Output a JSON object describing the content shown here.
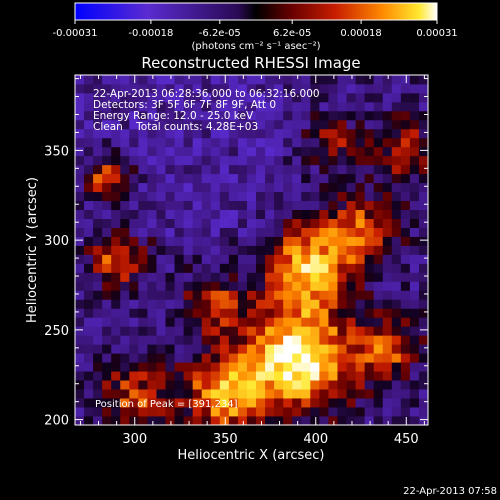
{
  "chart_data": {
    "type": "heatmap",
    "title": "Reconstructed RHESSI Image",
    "xlabel": "Heliocentric X (arcsec)",
    "ylabel": "Heliocentric Y (arcsec)",
    "xlim": [
      267,
      462
    ],
    "ylim": [
      197,
      392
    ],
    "x_ticks": [
      300,
      350,
      400,
      450
    ],
    "y_ticks": [
      200,
      250,
      300,
      350
    ],
    "colorbar": {
      "ticks": [
        "-0.00031",
        "-0.00018",
        "-6.2e-05",
        "6.2e-05",
        "0.00018",
        "0.00031"
      ],
      "unit_label": "(photons cm⁻² s⁻¹ asec⁻²)",
      "range": [
        -0.00031,
        0.00031
      ]
    },
    "annotations": [
      "22-Apr-2013 06:28:36.000 to 06:32:16.000",
      "Detectors: 3F 5F 6F 7F 8F 9F, Att 0",
      "Energy Range: 12.0 - 25.0 keV",
      "Clean    Total counts: 4.28E+03"
    ],
    "peak_label": "Position of Peak = [391,234]",
    "peak": {
      "x": 391,
      "y": 234
    },
    "sources": [
      {
        "x": 391,
        "y": 234,
        "sigma": 20,
        "amp": 1.0
      },
      {
        "x": 395,
        "y": 285,
        "sigma": 16,
        "amp": 0.78
      },
      {
        "x": 425,
        "y": 305,
        "sigma": 14,
        "amp": 0.55
      },
      {
        "x": 350,
        "y": 215,
        "sigma": 16,
        "amp": 0.72
      },
      {
        "x": 300,
        "y": 212,
        "sigma": 14,
        "amp": 0.5
      },
      {
        "x": 440,
        "y": 240,
        "sigma": 12,
        "amp": 0.55
      },
      {
        "x": 285,
        "y": 335,
        "sigma": 10,
        "amp": 0.6
      },
      {
        "x": 290,
        "y": 290,
        "sigma": 11,
        "amp": 0.55
      },
      {
        "x": 345,
        "y": 265,
        "sigma": 12,
        "amp": 0.45
      },
      {
        "x": 450,
        "y": 350,
        "sigma": 12,
        "amp": 0.45
      },
      {
        "x": 410,
        "y": 355,
        "sigma": 10,
        "amp": 0.35
      }
    ],
    "grid": false,
    "colors": {
      "background": "#000000",
      "foreground": "#ffffff"
    }
  },
  "timestamp": "22-Apr-2013 07:58"
}
